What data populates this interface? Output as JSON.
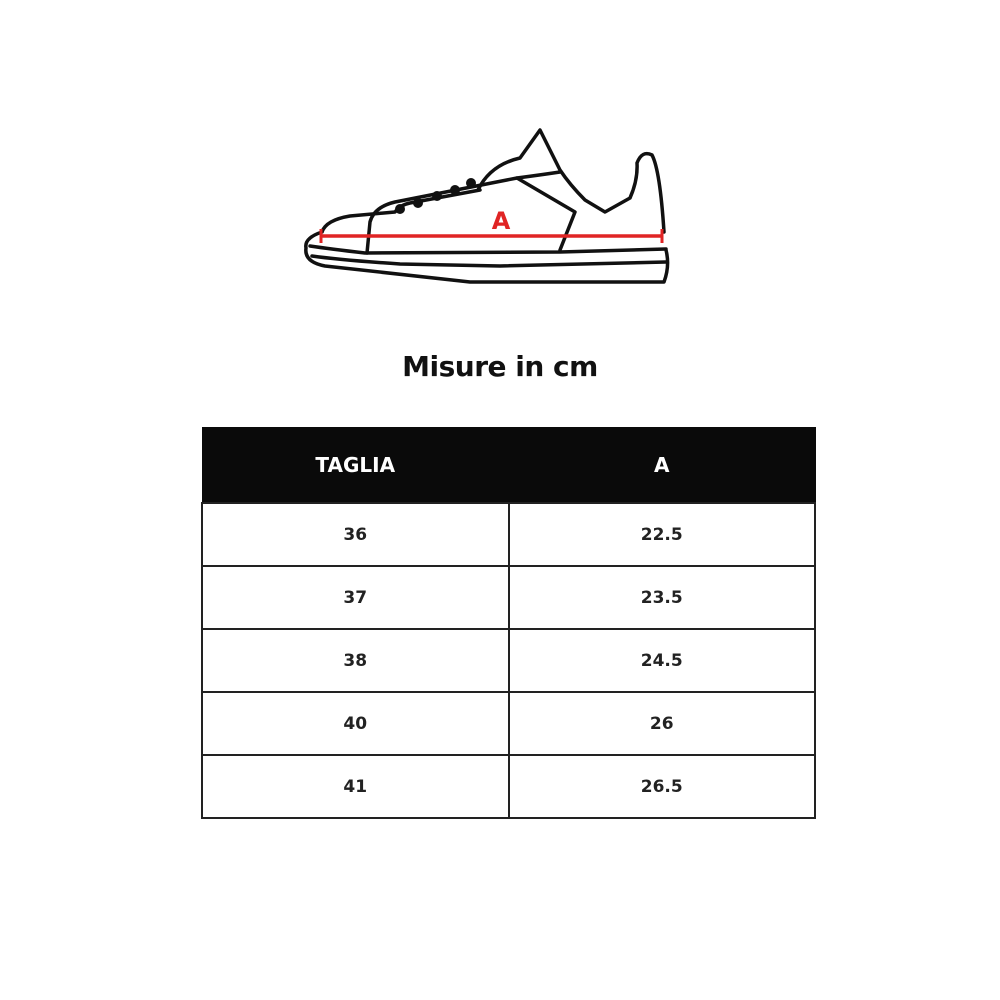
{
  "diagram": {
    "measure_label": "A",
    "measure_color": "#e02424"
  },
  "title": "Misure in cm",
  "table": {
    "headers": [
      "TAGLIA",
      "A"
    ],
    "rows": [
      [
        "36",
        "22.5"
      ],
      [
        "37",
        "23.5"
      ],
      [
        "38",
        "24.5"
      ],
      [
        "40",
        "26"
      ],
      [
        "41",
        "26.5"
      ]
    ]
  }
}
